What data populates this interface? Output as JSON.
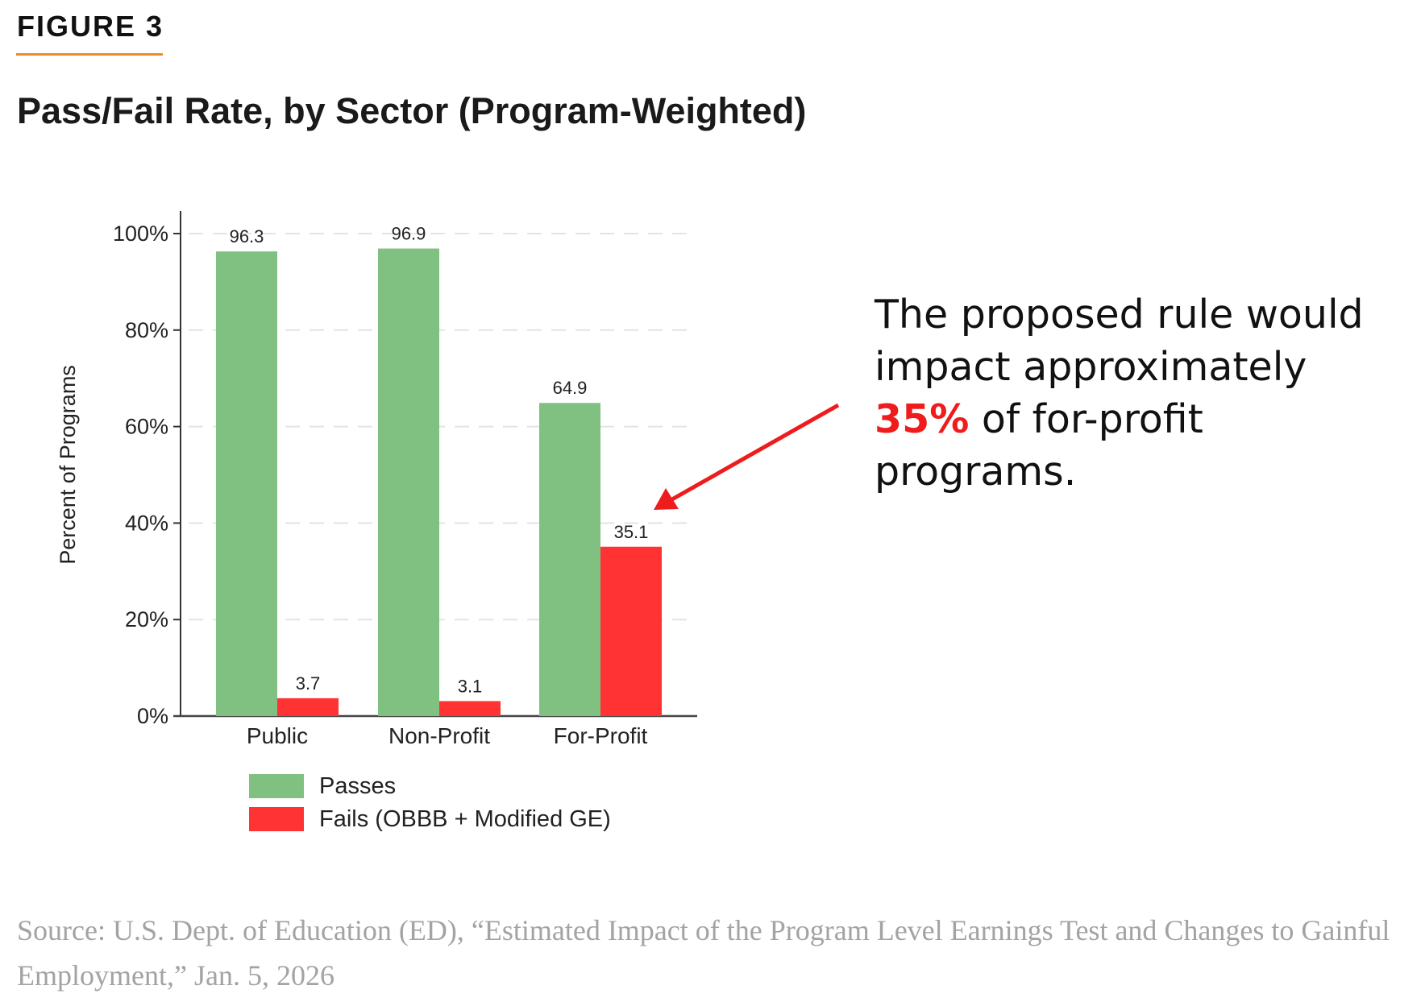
{
  "figure_label": "FIGURE 3",
  "title": "Pass/Fail Rate, by Sector (Program-Weighted)",
  "annotation": {
    "line1": "The proposed rule would",
    "line2": "impact approximately",
    "highlight": "35%",
    "line3_rest": " of for-profit",
    "line4": "programs."
  },
  "source": "Source: U.S. Dept. of Education (ED), “Estimated Impact of the Program Level Earnings Test and Changes to Gainful Employment,” Jan. 5, 2026",
  "colors": {
    "passes": "#80c080",
    "fails": "#ff3333",
    "accent": "#f08a24",
    "arrow": "#ee1c1c"
  },
  "chart_data": {
    "type": "bar",
    "categories": [
      "Public",
      "Non-Profit",
      "For-Profit"
    ],
    "series": [
      {
        "name": "Passes",
        "values": [
          96.3,
          96.9,
          64.9
        ]
      },
      {
        "name": "Fails (OBBB + Modified GE)",
        "values": [
          3.7,
          3.1,
          35.1
        ]
      }
    ],
    "data_labels": [
      [
        "96.3",
        "96.9",
        "64.9"
      ],
      [
        "3.7",
        "3.1",
        "35.1"
      ]
    ],
    "ylabel": "Percent of Programs",
    "xlabel": "",
    "ylim": [
      0,
      100
    ],
    "yticks": [
      0,
      20,
      40,
      60,
      80,
      100
    ],
    "ytick_labels": [
      "0%",
      "20%",
      "40%",
      "60%",
      "80%",
      "100%"
    ],
    "grid": "dashed horizontal",
    "legend": "bottom"
  }
}
